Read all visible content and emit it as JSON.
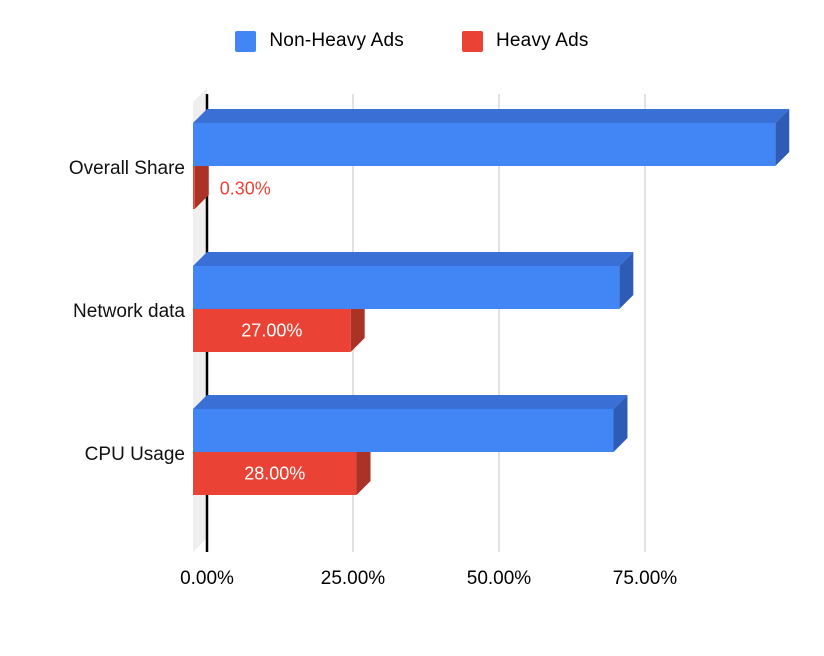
{
  "chart_data": {
    "type": "bar",
    "orientation": "horizontal",
    "style": "3d",
    "title": "",
    "xlabel": "",
    "ylabel": "",
    "categories": [
      "Overall Share",
      "Network data",
      "CPU Usage"
    ],
    "series": [
      {
        "name": "Non-Heavy Ads",
        "color": "#4285f4",
        "color_top": "#3a70d6",
        "color_side": "#2e5bb5",
        "values": [
          99.7,
          73,
          72
        ],
        "value_labels": [
          "",
          "",
          ""
        ]
      },
      {
        "name": "Heavy Ads",
        "color": "#ea4335",
        "color_top": "#cc3a2d",
        "color_side": "#ab3226",
        "values": [
          0.3,
          27,
          28
        ],
        "value_labels": [
          "0.30%",
          "27.00%",
          "28.00%"
        ]
      }
    ],
    "x_ticks": [
      "0.00%",
      "25.00%",
      "50.00%",
      "75.00%"
    ],
    "x_tick_values": [
      0,
      25,
      50,
      75
    ],
    "xlim": [
      0,
      100
    ],
    "grid": true,
    "legend_position": "top"
  },
  "colors": {
    "gridline": "#d9d9d9",
    "axis": "#000000",
    "wall": "#efefef",
    "tick_text": "#000000",
    "category_text": "#111111",
    "inside_label_text": "#ffffff"
  }
}
